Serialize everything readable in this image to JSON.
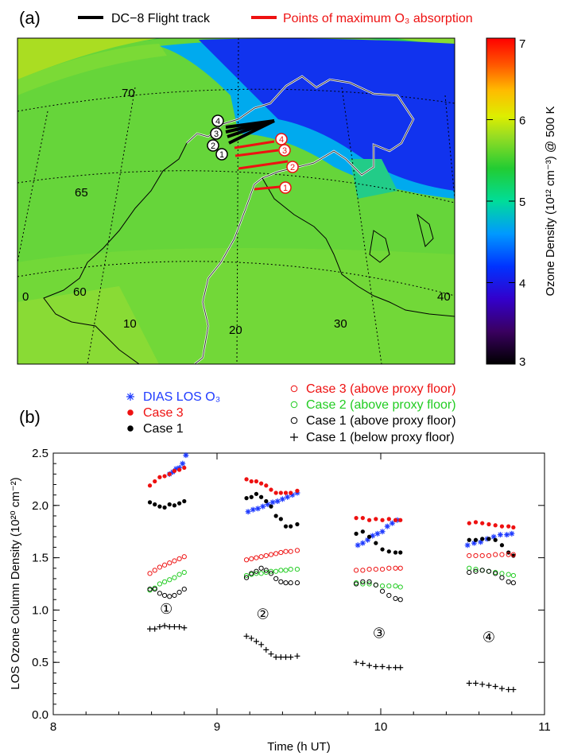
{
  "panel_a": {
    "label": "(a)",
    "legend": [
      {
        "name": "DC−8 Flight track",
        "color": "#000000"
      },
      {
        "name": "Points of maximum O₃ absorption",
        "color": "#ee1111"
      }
    ],
    "colorbar": {
      "label": "Ozone Density (10¹² cm⁻³) @ 500 K",
      "min": 3,
      "max": 7,
      "ticks": [
        "3",
        "4",
        "5",
        "6",
        "7"
      ]
    },
    "lat_labels": [
      "70",
      "65",
      "60"
    ],
    "lon_labels": [
      "0",
      "10",
      "20",
      "30",
      "40"
    ],
    "track_markers": [
      "4",
      "3",
      "2",
      "1"
    ],
    "absorption_markers": [
      "4",
      "3",
      "2",
      "1"
    ]
  },
  "colors": {
    "dias": "#1f3bff",
    "case3": "#ee1111",
    "case2": "#22cc22",
    "case1": "#000000"
  },
  "chart_data": {
    "type": "scatter",
    "label": "(b)",
    "title": "",
    "xlabel": "Time (h UT)",
    "ylabel": "LOS Ozone Column Density (10²⁰ cm⁻²)",
    "xlim": [
      8,
      11
    ],
    "ylim": [
      0,
      2.5
    ],
    "xticks": [
      "8",
      "9",
      "10",
      "11"
    ],
    "yticks": [
      "0.0",
      "0.5",
      "1.0",
      "1.5",
      "2.0",
      "2.5"
    ],
    "legend_left": [
      "DIAS LOS O₃",
      "Case 3",
      "Case 1"
    ],
    "legend_right": [
      "Case 3 (above proxy floor)",
      "Case 2 (above proxy floor)",
      "Case 1 (above proxy floor)",
      "Case 1 (below proxy floor)"
    ],
    "case_markers": [
      {
        "label": "①",
        "x": 8.69,
        "y": 1.01
      },
      {
        "label": "②",
        "x": 9.28,
        "y": 0.96
      },
      {
        "label": "③",
        "x": 9.99,
        "y": 0.78
      },
      {
        "label": "④",
        "x": 10.66,
        "y": 0.74
      }
    ],
    "series": [
      {
        "name": "DIAS LOS O₃",
        "marker": "star",
        "color": "#1f3bff",
        "points": [
          [
            8.71,
            2.3
          ],
          [
            8.73,
            2.32
          ],
          [
            8.75,
            2.35
          ],
          [
            8.77,
            2.36
          ],
          [
            8.79,
            2.4
          ],
          [
            8.81,
            2.48
          ],
          [
            9.19,
            1.94
          ],
          [
            9.22,
            1.96
          ],
          [
            9.25,
            1.97
          ],
          [
            9.28,
            1.99
          ],
          [
            9.31,
            2.01
          ],
          [
            9.34,
            2.03
          ],
          [
            9.37,
            2.04
          ],
          [
            9.4,
            2.06
          ],
          [
            9.43,
            2.08
          ],
          [
            9.46,
            2.1
          ],
          [
            9.49,
            2.12
          ],
          [
            9.86,
            1.62
          ],
          [
            9.89,
            1.64
          ],
          [
            9.92,
            1.67
          ],
          [
            9.95,
            1.71
          ],
          [
            9.98,
            1.73
          ],
          [
            10.01,
            1.75
          ],
          [
            10.04,
            1.8
          ],
          [
            10.07,
            1.83
          ],
          [
            10.1,
            1.86
          ],
          [
            10.53,
            1.62
          ],
          [
            10.57,
            1.64
          ],
          [
            10.61,
            1.65
          ],
          [
            10.65,
            1.68
          ],
          [
            10.69,
            1.7
          ],
          [
            10.73,
            1.72
          ],
          [
            10.77,
            1.72
          ],
          [
            10.8,
            1.73
          ]
        ]
      },
      {
        "name": "Case 3",
        "marker": "filled-circle",
        "color": "#ee1111",
        "points": [
          [
            8.59,
            2.19
          ],
          [
            8.62,
            2.23
          ],
          [
            8.65,
            2.27
          ],
          [
            8.68,
            2.28
          ],
          [
            8.71,
            2.3
          ],
          [
            8.74,
            2.33
          ],
          [
            8.77,
            2.34
          ],
          [
            8.8,
            2.36
          ],
          [
            9.18,
            2.25
          ],
          [
            9.21,
            2.23
          ],
          [
            9.24,
            2.23
          ],
          [
            9.27,
            2.21
          ],
          [
            9.3,
            2.19
          ],
          [
            9.33,
            2.15
          ],
          [
            9.36,
            2.12
          ],
          [
            9.39,
            2.12
          ],
          [
            9.42,
            2.12
          ],
          [
            9.45,
            2.12
          ],
          [
            9.49,
            2.14
          ],
          [
            9.85,
            1.88
          ],
          [
            9.89,
            1.88
          ],
          [
            9.93,
            1.86
          ],
          [
            9.97,
            1.87
          ],
          [
            10.01,
            1.86
          ],
          [
            10.05,
            1.87
          ],
          [
            10.09,
            1.86
          ],
          [
            10.12,
            1.86
          ],
          [
            10.54,
            1.83
          ],
          [
            10.58,
            1.84
          ],
          [
            10.62,
            1.83
          ],
          [
            10.66,
            1.82
          ],
          [
            10.7,
            1.81
          ],
          [
            10.74,
            1.8
          ],
          [
            10.78,
            1.8
          ],
          [
            10.81,
            1.79
          ]
        ]
      },
      {
        "name": "Case 1",
        "marker": "filled-circle",
        "color": "#000000",
        "points": [
          [
            8.59,
            2.03
          ],
          [
            8.62,
            2.01
          ],
          [
            8.65,
            1.99
          ],
          [
            8.68,
            1.98
          ],
          [
            8.71,
            2.01
          ],
          [
            8.74,
            2.0
          ],
          [
            8.77,
            2.02
          ],
          [
            8.8,
            2.04
          ],
          [
            9.18,
            2.07
          ],
          [
            9.21,
            2.08
          ],
          [
            9.24,
            2.11
          ],
          [
            9.27,
            2.08
          ],
          [
            9.3,
            2.04
          ],
          [
            9.33,
            1.99
          ],
          [
            9.36,
            1.9
          ],
          [
            9.39,
            1.87
          ],
          [
            9.42,
            1.8
          ],
          [
            9.45,
            1.8
          ],
          [
            9.49,
            1.82
          ],
          [
            9.85,
            1.73
          ],
          [
            9.89,
            1.75
          ],
          [
            9.93,
            1.7
          ],
          [
            9.97,
            1.64
          ],
          [
            10.01,
            1.58
          ],
          [
            10.05,
            1.56
          ],
          [
            10.09,
            1.55
          ],
          [
            10.12,
            1.55
          ],
          [
            10.54,
            1.67
          ],
          [
            10.58,
            1.67
          ],
          [
            10.62,
            1.68
          ],
          [
            10.66,
            1.68
          ],
          [
            10.7,
            1.67
          ],
          [
            10.74,
            1.62
          ],
          [
            10.78,
            1.55
          ],
          [
            10.81,
            1.52
          ]
        ]
      },
      {
        "name": "Case 3 (above proxy floor)",
        "marker": "open-circle",
        "color": "#ee1111",
        "points": [
          [
            8.59,
            1.35
          ],
          [
            8.62,
            1.38
          ],
          [
            8.65,
            1.41
          ],
          [
            8.68,
            1.43
          ],
          [
            8.71,
            1.45
          ],
          [
            8.74,
            1.47
          ],
          [
            8.77,
            1.49
          ],
          [
            8.8,
            1.51
          ],
          [
            9.18,
            1.48
          ],
          [
            9.21,
            1.49
          ],
          [
            9.24,
            1.5
          ],
          [
            9.27,
            1.51
          ],
          [
            9.3,
            1.52
          ],
          [
            9.33,
            1.53
          ],
          [
            9.36,
            1.54
          ],
          [
            9.39,
            1.55
          ],
          [
            9.42,
            1.56
          ],
          [
            9.45,
            1.56
          ],
          [
            9.49,
            1.57
          ],
          [
            9.85,
            1.38
          ],
          [
            9.89,
            1.38
          ],
          [
            9.93,
            1.39
          ],
          [
            9.97,
            1.39
          ],
          [
            10.01,
            1.39
          ],
          [
            10.05,
            1.4
          ],
          [
            10.09,
            1.4
          ],
          [
            10.12,
            1.4
          ],
          [
            10.54,
            1.52
          ],
          [
            10.58,
            1.52
          ],
          [
            10.62,
            1.52
          ],
          [
            10.66,
            1.52
          ],
          [
            10.7,
            1.53
          ],
          [
            10.74,
            1.53
          ],
          [
            10.78,
            1.53
          ],
          [
            10.81,
            1.53
          ]
        ]
      },
      {
        "name": "Case 2 (above proxy floor)",
        "marker": "open-circle",
        "color": "#22cc22",
        "points": [
          [
            8.59,
            1.19
          ],
          [
            8.62,
            1.21
          ],
          [
            8.65,
            1.25
          ],
          [
            8.68,
            1.27
          ],
          [
            8.71,
            1.29
          ],
          [
            8.74,
            1.31
          ],
          [
            8.77,
            1.34
          ],
          [
            8.8,
            1.36
          ],
          [
            9.18,
            1.33
          ],
          [
            9.21,
            1.34
          ],
          [
            9.24,
            1.35
          ],
          [
            9.27,
            1.35
          ],
          [
            9.3,
            1.36
          ],
          [
            9.33,
            1.37
          ],
          [
            9.36,
            1.37
          ],
          [
            9.39,
            1.38
          ],
          [
            9.42,
            1.38
          ],
          [
            9.45,
            1.39
          ],
          [
            9.49,
            1.39
          ],
          [
            9.85,
            1.26
          ],
          [
            9.89,
            1.25
          ],
          [
            9.93,
            1.25
          ],
          [
            9.97,
            1.24
          ],
          [
            10.01,
            1.23
          ],
          [
            10.05,
            1.23
          ],
          [
            10.09,
            1.23
          ],
          [
            10.12,
            1.22
          ],
          [
            10.54,
            1.4
          ],
          [
            10.58,
            1.39
          ],
          [
            10.62,
            1.38
          ],
          [
            10.66,
            1.37
          ],
          [
            10.7,
            1.36
          ],
          [
            10.74,
            1.35
          ],
          [
            10.78,
            1.34
          ],
          [
            10.81,
            1.33
          ]
        ]
      },
      {
        "name": "Case 1 (above proxy floor)",
        "marker": "open-circle",
        "color": "#000000",
        "points": [
          [
            8.59,
            1.2
          ],
          [
            8.62,
            1.2
          ],
          [
            8.65,
            1.16
          ],
          [
            8.68,
            1.14
          ],
          [
            8.71,
            1.13
          ],
          [
            8.74,
            1.14
          ],
          [
            8.77,
            1.17
          ],
          [
            8.8,
            1.2
          ],
          [
            9.18,
            1.31
          ],
          [
            9.21,
            1.35
          ],
          [
            9.24,
            1.37
          ],
          [
            9.27,
            1.4
          ],
          [
            9.3,
            1.38
          ],
          [
            9.33,
            1.35
          ],
          [
            9.36,
            1.3
          ],
          [
            9.39,
            1.27
          ],
          [
            9.42,
            1.26
          ],
          [
            9.45,
            1.26
          ],
          [
            9.49,
            1.26
          ],
          [
            9.85,
            1.25
          ],
          [
            9.89,
            1.27
          ],
          [
            9.93,
            1.27
          ],
          [
            9.97,
            1.24
          ],
          [
            10.01,
            1.18
          ],
          [
            10.05,
            1.14
          ],
          [
            10.09,
            1.11
          ],
          [
            10.12,
            1.1
          ],
          [
            10.54,
            1.36
          ],
          [
            10.58,
            1.37
          ],
          [
            10.62,
            1.38
          ],
          [
            10.66,
            1.37
          ],
          [
            10.7,
            1.35
          ],
          [
            10.74,
            1.31
          ],
          [
            10.78,
            1.27
          ],
          [
            10.81,
            1.26
          ]
        ]
      },
      {
        "name": "Case 1 (below proxy floor)",
        "marker": "plus",
        "color": "#000000",
        "points": [
          [
            8.59,
            0.82
          ],
          [
            8.62,
            0.82
          ],
          [
            8.65,
            0.84
          ],
          [
            8.68,
            0.85
          ],
          [
            8.71,
            0.84
          ],
          [
            8.74,
            0.84
          ],
          [
            8.77,
            0.84
          ],
          [
            8.8,
            0.83
          ],
          [
            9.18,
            0.75
          ],
          [
            9.21,
            0.73
          ],
          [
            9.24,
            0.7
          ],
          [
            9.27,
            0.67
          ],
          [
            9.3,
            0.62
          ],
          [
            9.33,
            0.58
          ],
          [
            9.36,
            0.55
          ],
          [
            9.39,
            0.55
          ],
          [
            9.42,
            0.55
          ],
          [
            9.45,
            0.55
          ],
          [
            9.49,
            0.56
          ],
          [
            9.85,
            0.5
          ],
          [
            9.89,
            0.49
          ],
          [
            9.93,
            0.47
          ],
          [
            9.97,
            0.46
          ],
          [
            10.01,
            0.46
          ],
          [
            10.05,
            0.45
          ],
          [
            10.09,
            0.45
          ],
          [
            10.12,
            0.45
          ],
          [
            10.54,
            0.3
          ],
          [
            10.58,
            0.3
          ],
          [
            10.62,
            0.29
          ],
          [
            10.66,
            0.28
          ],
          [
            10.7,
            0.27
          ],
          [
            10.74,
            0.25
          ],
          [
            10.78,
            0.24
          ],
          [
            10.81,
            0.24
          ]
        ]
      }
    ]
  }
}
